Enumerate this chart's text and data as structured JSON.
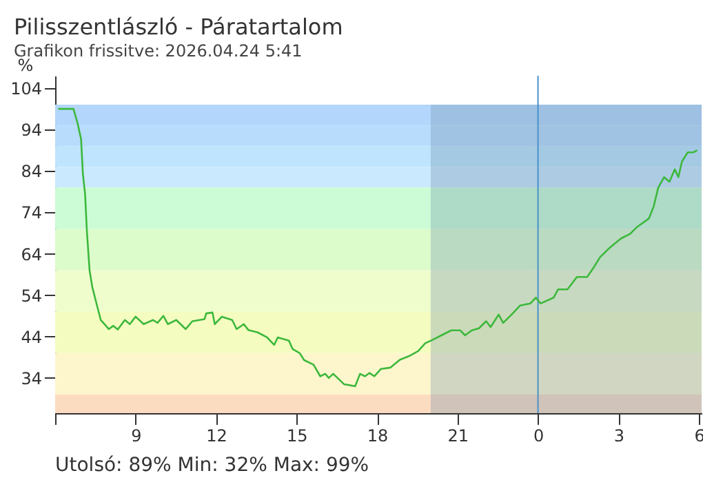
{
  "chart_data": {
    "type": "line",
    "title": "Pilisszentlászló - Páratartalom",
    "subtitle": "Grafikon frissitve: 2026.04.24 5:41",
    "ylabel": "%",
    "annotations": [
      "Utolsó: 89%  Min: 32%  Max: 99%"
    ],
    "x": [
      "2026-04-23T06:07",
      "2026-04-23T06:41",
      "2026-04-23T06:50",
      "2026-04-23T06:58",
      "2026-04-23T07:02",
      "2026-04-23T07:07",
      "2026-04-23T07:11",
      "2026-04-23T07:17",
      "2026-04-23T07:23",
      "2026-04-23T07:32",
      "2026-04-23T07:42",
      "2026-04-23T08:00",
      "2026-04-23T08:10",
      "2026-04-23T08:20",
      "2026-04-23T08:36",
      "2026-04-23T08:47",
      "2026-04-23T09:00",
      "2026-04-23T09:18",
      "2026-04-23T09:39",
      "2026-04-23T09:49",
      "2026-04-23T10:02",
      "2026-04-23T10:12",
      "2026-04-23T10:31",
      "2026-04-23T10:52",
      "2026-04-23T11:07",
      "2026-04-23T11:34",
      "2026-04-23T11:38",
      "2026-04-23T11:52",
      "2026-04-23T11:57",
      "2026-04-23T12:13",
      "2026-04-23T12:36",
      "2026-04-23T12:46",
      "2026-04-23T13:02",
      "2026-04-23T13:12",
      "2026-04-23T13:33",
      "2026-04-23T13:54",
      "2026-04-23T14:10",
      "2026-04-23T14:18",
      "2026-04-23T14:43",
      "2026-04-23T14:51",
      "2026-04-23T15:07",
      "2026-04-23T15:17",
      "2026-04-23T15:38",
      "2026-04-23T15:53",
      "2026-04-23T16:04",
      "2026-04-23T16:12",
      "2026-04-23T16:22",
      "2026-04-23T16:46",
      "2026-04-23T17:11",
      "2026-04-23T17:22",
      "2026-04-23T17:33",
      "2026-04-23T17:43",
      "2026-04-23T17:54",
      "2026-04-23T18:09",
      "2026-04-23T18:30",
      "2026-04-23T18:51",
      "2026-04-23T19:12",
      "2026-04-23T19:32",
      "2026-04-23T19:48",
      "2026-04-23T20:04",
      "2026-04-23T20:24",
      "2026-04-23T20:46",
      "2026-04-23T21:06",
      "2026-04-23T21:17",
      "2026-04-23T21:32",
      "2026-04-23T21:48",
      "2026-04-23T22:04",
      "2026-04-23T22:14",
      "2026-04-23T22:32",
      "2026-04-23T22:42",
      "2026-04-23T23:01",
      "2026-04-23T23:20",
      "2026-04-23T23:43",
      "2026-04-23T23:55",
      "2026-04-24T00:06",
      "2026-04-24T00:35",
      "2026-04-24T00:45",
      "2026-04-24T01:06",
      "2026-04-24T01:27",
      "2026-04-24T01:50",
      "2026-04-24T02:04",
      "2026-04-24T02:19",
      "2026-04-24T02:40",
      "2026-04-24T03:06",
      "2026-04-24T03:26",
      "2026-04-24T03:42",
      "2026-04-24T04:08",
      "2026-04-24T04:19",
      "2026-04-24T04:29",
      "2026-04-24T04:42",
      "2026-04-24T04:54",
      "2026-04-24T05:06",
      "2026-04-24T05:14",
      "2026-04-24T05:22",
      "2026-04-24T05:35",
      "2026-04-24T05:48",
      "2026-04-24T05:56"
    ],
    "series": [
      {
        "color": "#3cb83c",
        "values": [
          99,
          99,
          95.6,
          91.7,
          83.4,
          78.4,
          69.5,
          60,
          56,
          52.2,
          48,
          45.8,
          46.6,
          45.7,
          48,
          47,
          48.8,
          47,
          48,
          47.3,
          49,
          47,
          48,
          45.8,
          47.7,
          48.2,
          49.6,
          49.8,
          47,
          48.8,
          48,
          45.8,
          47,
          45.6,
          45,
          43.8,
          42,
          43.8,
          43,
          41,
          40,
          38.3,
          37.2,
          34.4,
          35,
          34,
          35,
          32.5,
          32,
          35,
          34.4,
          35.2,
          34.4,
          36.2,
          36.5,
          38.4,
          39.3,
          40.5,
          42.4,
          43.2,
          44.3,
          45.5,
          45.5,
          44.3,
          45.5,
          46,
          47.7,
          46.3,
          49.3,
          47.3,
          49.3,
          51.5,
          52,
          53.4,
          52,
          53.4,
          55.4,
          55.4,
          58.4,
          58.4,
          60.6,
          63.2,
          65.4,
          67.7,
          68.8,
          70.5,
          72.5,
          75.5,
          80,
          82.5,
          81.4,
          84.4,
          82.5,
          86.3,
          88.5,
          88.5,
          89
        ]
      }
    ],
    "xlim": [
      "2026-04-23T06:00",
      "2026-04-24T06:06"
    ],
    "xticks": [
      {
        "value": "2026-04-23T06:00",
        "label": null
      },
      {
        "value": "2026-04-23T09:00",
        "label": "9"
      },
      {
        "value": "2026-04-23T12:00",
        "label": "12"
      },
      {
        "value": "2026-04-23T15:00",
        "label": "15"
      },
      {
        "value": "2026-04-23T18:00",
        "label": "18"
      },
      {
        "value": "2026-04-23T21:00",
        "label": "21"
      },
      {
        "value": "2026-04-24T00:00",
        "label": "0"
      },
      {
        "value": "2026-04-24T03:00",
        "label": "3"
      },
      {
        "value": "2026-04-24T06:00",
        "label": "6"
      }
    ],
    "ylim": [
      25.5,
      107
    ],
    "yticks": [
      34,
      44,
      54,
      64,
      74,
      84,
      94,
      104
    ],
    "bands": [
      {
        "axis": "y",
        "from": 95,
        "to": 100,
        "color": "#b3d7fc"
      },
      {
        "axis": "y",
        "from": 90,
        "to": 95,
        "color": "#b8dcfc"
      },
      {
        "axis": "y",
        "from": 85,
        "to": 90,
        "color": "#bee5fd"
      },
      {
        "axis": "y",
        "from": 80,
        "to": 85,
        "color": "#cbe9fe"
      },
      {
        "axis": "y",
        "from": 70,
        "to": 80,
        "color": "#ccfcd6"
      },
      {
        "axis": "y",
        "from": 60,
        "to": 70,
        "color": "#ddfccc"
      },
      {
        "axis": "y",
        "from": 50,
        "to": 60,
        "color": "#effccc"
      },
      {
        "axis": "y",
        "from": 40,
        "to": 50,
        "color": "#f5fcc0"
      },
      {
        "axis": "y",
        "from": 30,
        "to": 40,
        "color": "#fdf6cc"
      },
      {
        "axis": "y",
        "from": 25.5,
        "to": 30,
        "color": "#fcdcc0"
      },
      {
        "axis": "x",
        "from": "2026-04-23T20:00",
        "to": "2026-04-24T06:06",
        "color": "#6a8aaa"
      }
    ],
    "ref_lines": [
      {
        "axis": "x",
        "value": "2026-04-24T00:00",
        "color": "#4a90c8"
      }
    ],
    "grid": false,
    "legend": false
  }
}
